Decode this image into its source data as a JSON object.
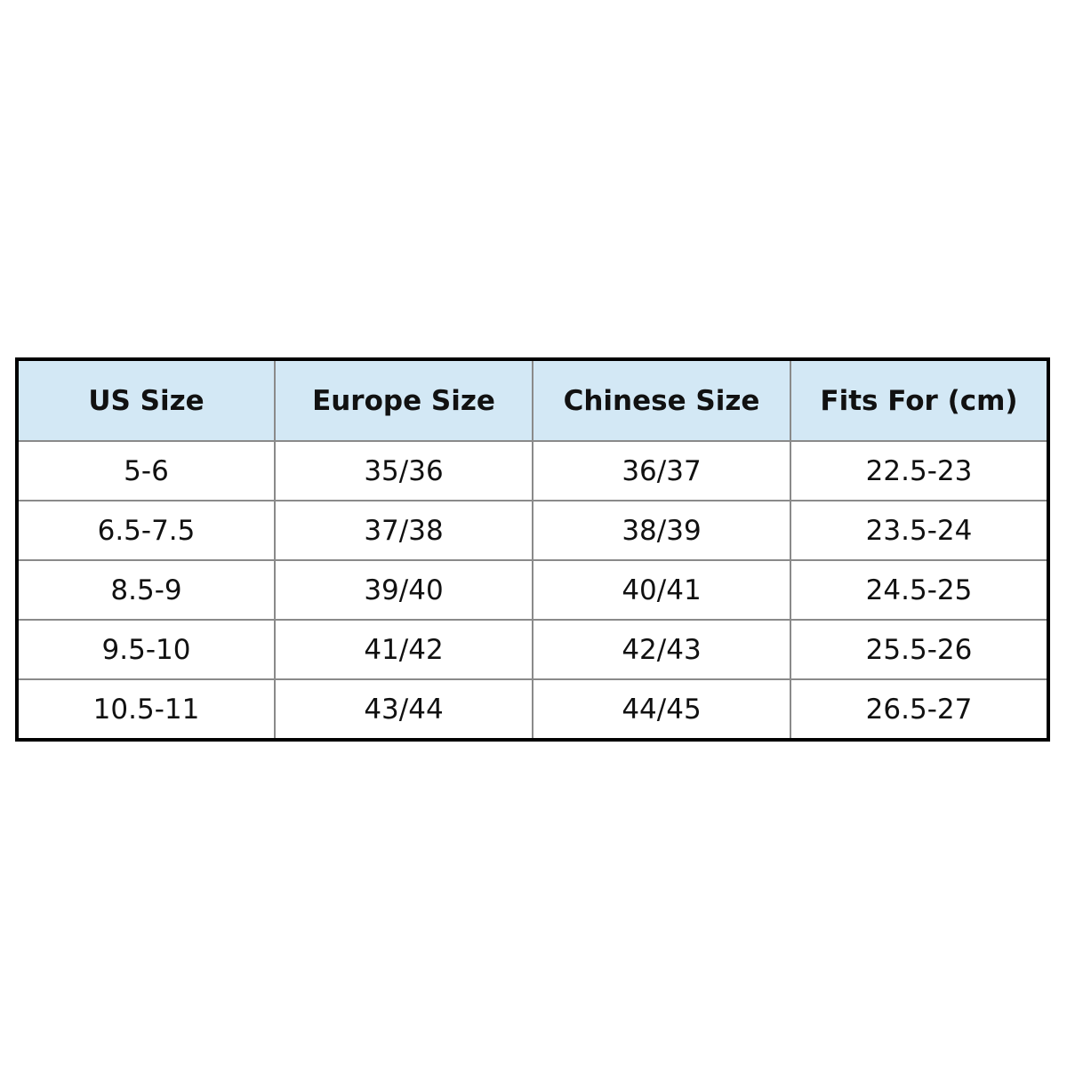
{
  "colors": {
    "header_background": "#d3e8f5",
    "border": "#000000",
    "grid": "#8a8a8a"
  },
  "table": {
    "headers": [
      "US Size",
      "Europe Size",
      "Chinese Size",
      "Fits For (cm)"
    ],
    "rows": [
      [
        "5-6",
        "35/36",
        "36/37",
        "22.5-23"
      ],
      [
        "6.5-7.5",
        "37/38",
        "38/39",
        "23.5-24"
      ],
      [
        "8.5-9",
        "39/40",
        "40/41",
        "24.5-25"
      ],
      [
        "9.5-10",
        "41/42",
        "42/43",
        "25.5-26"
      ],
      [
        "10.5-11",
        "43/44",
        "44/45",
        "26.5-27"
      ]
    ]
  }
}
